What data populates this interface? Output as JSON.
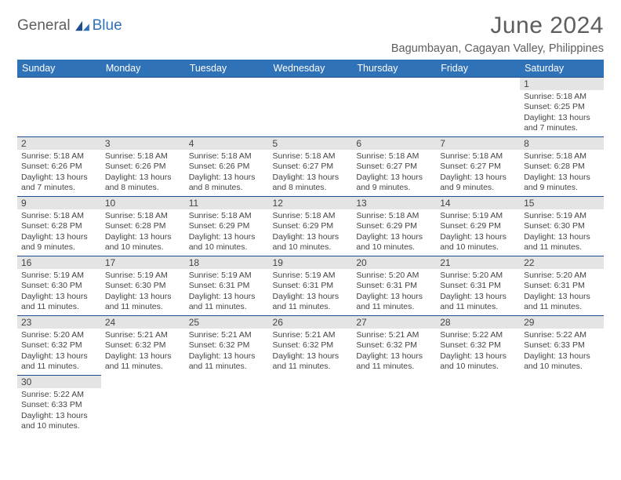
{
  "brand": {
    "part1": "General",
    "part2": "Blue"
  },
  "title": "June 2024",
  "location": "Bagumbayan, Cagayan Valley, Philippines",
  "colors": {
    "header_bg": "#2f72b8",
    "header_text": "#ffffff",
    "daynum_bg": "#e4e4e4",
    "text": "#444444",
    "border": "#1f4e8c"
  },
  "day_headers": [
    "Sunday",
    "Monday",
    "Tuesday",
    "Wednesday",
    "Thursday",
    "Friday",
    "Saturday"
  ],
  "weeks": [
    [
      null,
      null,
      null,
      null,
      null,
      null,
      {
        "n": "1",
        "sr": "5:18 AM",
        "ss": "6:25 PM",
        "dl": "13 hours and 7 minutes."
      }
    ],
    [
      {
        "n": "2",
        "sr": "5:18 AM",
        "ss": "6:26 PM",
        "dl": "13 hours and 7 minutes."
      },
      {
        "n": "3",
        "sr": "5:18 AM",
        "ss": "6:26 PM",
        "dl": "13 hours and 8 minutes."
      },
      {
        "n": "4",
        "sr": "5:18 AM",
        "ss": "6:26 PM",
        "dl": "13 hours and 8 minutes."
      },
      {
        "n": "5",
        "sr": "5:18 AM",
        "ss": "6:27 PM",
        "dl": "13 hours and 8 minutes."
      },
      {
        "n": "6",
        "sr": "5:18 AM",
        "ss": "6:27 PM",
        "dl": "13 hours and 9 minutes."
      },
      {
        "n": "7",
        "sr": "5:18 AM",
        "ss": "6:27 PM",
        "dl": "13 hours and 9 minutes."
      },
      {
        "n": "8",
        "sr": "5:18 AM",
        "ss": "6:28 PM",
        "dl": "13 hours and 9 minutes."
      }
    ],
    [
      {
        "n": "9",
        "sr": "5:18 AM",
        "ss": "6:28 PM",
        "dl": "13 hours and 9 minutes."
      },
      {
        "n": "10",
        "sr": "5:18 AM",
        "ss": "6:28 PM",
        "dl": "13 hours and 10 minutes."
      },
      {
        "n": "11",
        "sr": "5:18 AM",
        "ss": "6:29 PM",
        "dl": "13 hours and 10 minutes."
      },
      {
        "n": "12",
        "sr": "5:18 AM",
        "ss": "6:29 PM",
        "dl": "13 hours and 10 minutes."
      },
      {
        "n": "13",
        "sr": "5:18 AM",
        "ss": "6:29 PM",
        "dl": "13 hours and 10 minutes."
      },
      {
        "n": "14",
        "sr": "5:19 AM",
        "ss": "6:29 PM",
        "dl": "13 hours and 10 minutes."
      },
      {
        "n": "15",
        "sr": "5:19 AM",
        "ss": "6:30 PM",
        "dl": "13 hours and 11 minutes."
      }
    ],
    [
      {
        "n": "16",
        "sr": "5:19 AM",
        "ss": "6:30 PM",
        "dl": "13 hours and 11 minutes."
      },
      {
        "n": "17",
        "sr": "5:19 AM",
        "ss": "6:30 PM",
        "dl": "13 hours and 11 minutes."
      },
      {
        "n": "18",
        "sr": "5:19 AM",
        "ss": "6:31 PM",
        "dl": "13 hours and 11 minutes."
      },
      {
        "n": "19",
        "sr": "5:19 AM",
        "ss": "6:31 PM",
        "dl": "13 hours and 11 minutes."
      },
      {
        "n": "20",
        "sr": "5:20 AM",
        "ss": "6:31 PM",
        "dl": "13 hours and 11 minutes."
      },
      {
        "n": "21",
        "sr": "5:20 AM",
        "ss": "6:31 PM",
        "dl": "13 hours and 11 minutes."
      },
      {
        "n": "22",
        "sr": "5:20 AM",
        "ss": "6:31 PM",
        "dl": "13 hours and 11 minutes."
      }
    ],
    [
      {
        "n": "23",
        "sr": "5:20 AM",
        "ss": "6:32 PM",
        "dl": "13 hours and 11 minutes."
      },
      {
        "n": "24",
        "sr": "5:21 AM",
        "ss": "6:32 PM",
        "dl": "13 hours and 11 minutes."
      },
      {
        "n": "25",
        "sr": "5:21 AM",
        "ss": "6:32 PM",
        "dl": "13 hours and 11 minutes."
      },
      {
        "n": "26",
        "sr": "5:21 AM",
        "ss": "6:32 PM",
        "dl": "13 hours and 11 minutes."
      },
      {
        "n": "27",
        "sr": "5:21 AM",
        "ss": "6:32 PM",
        "dl": "13 hours and 11 minutes."
      },
      {
        "n": "28",
        "sr": "5:22 AM",
        "ss": "6:32 PM",
        "dl": "13 hours and 10 minutes."
      },
      {
        "n": "29",
        "sr": "5:22 AM",
        "ss": "6:33 PM",
        "dl": "13 hours and 10 minutes."
      }
    ],
    [
      {
        "n": "30",
        "sr": "5:22 AM",
        "ss": "6:33 PM",
        "dl": "13 hours and 10 minutes."
      },
      null,
      null,
      null,
      null,
      null,
      null
    ]
  ],
  "labels": {
    "sunrise": "Sunrise:",
    "sunset": "Sunset:",
    "daylight": "Daylight:"
  }
}
